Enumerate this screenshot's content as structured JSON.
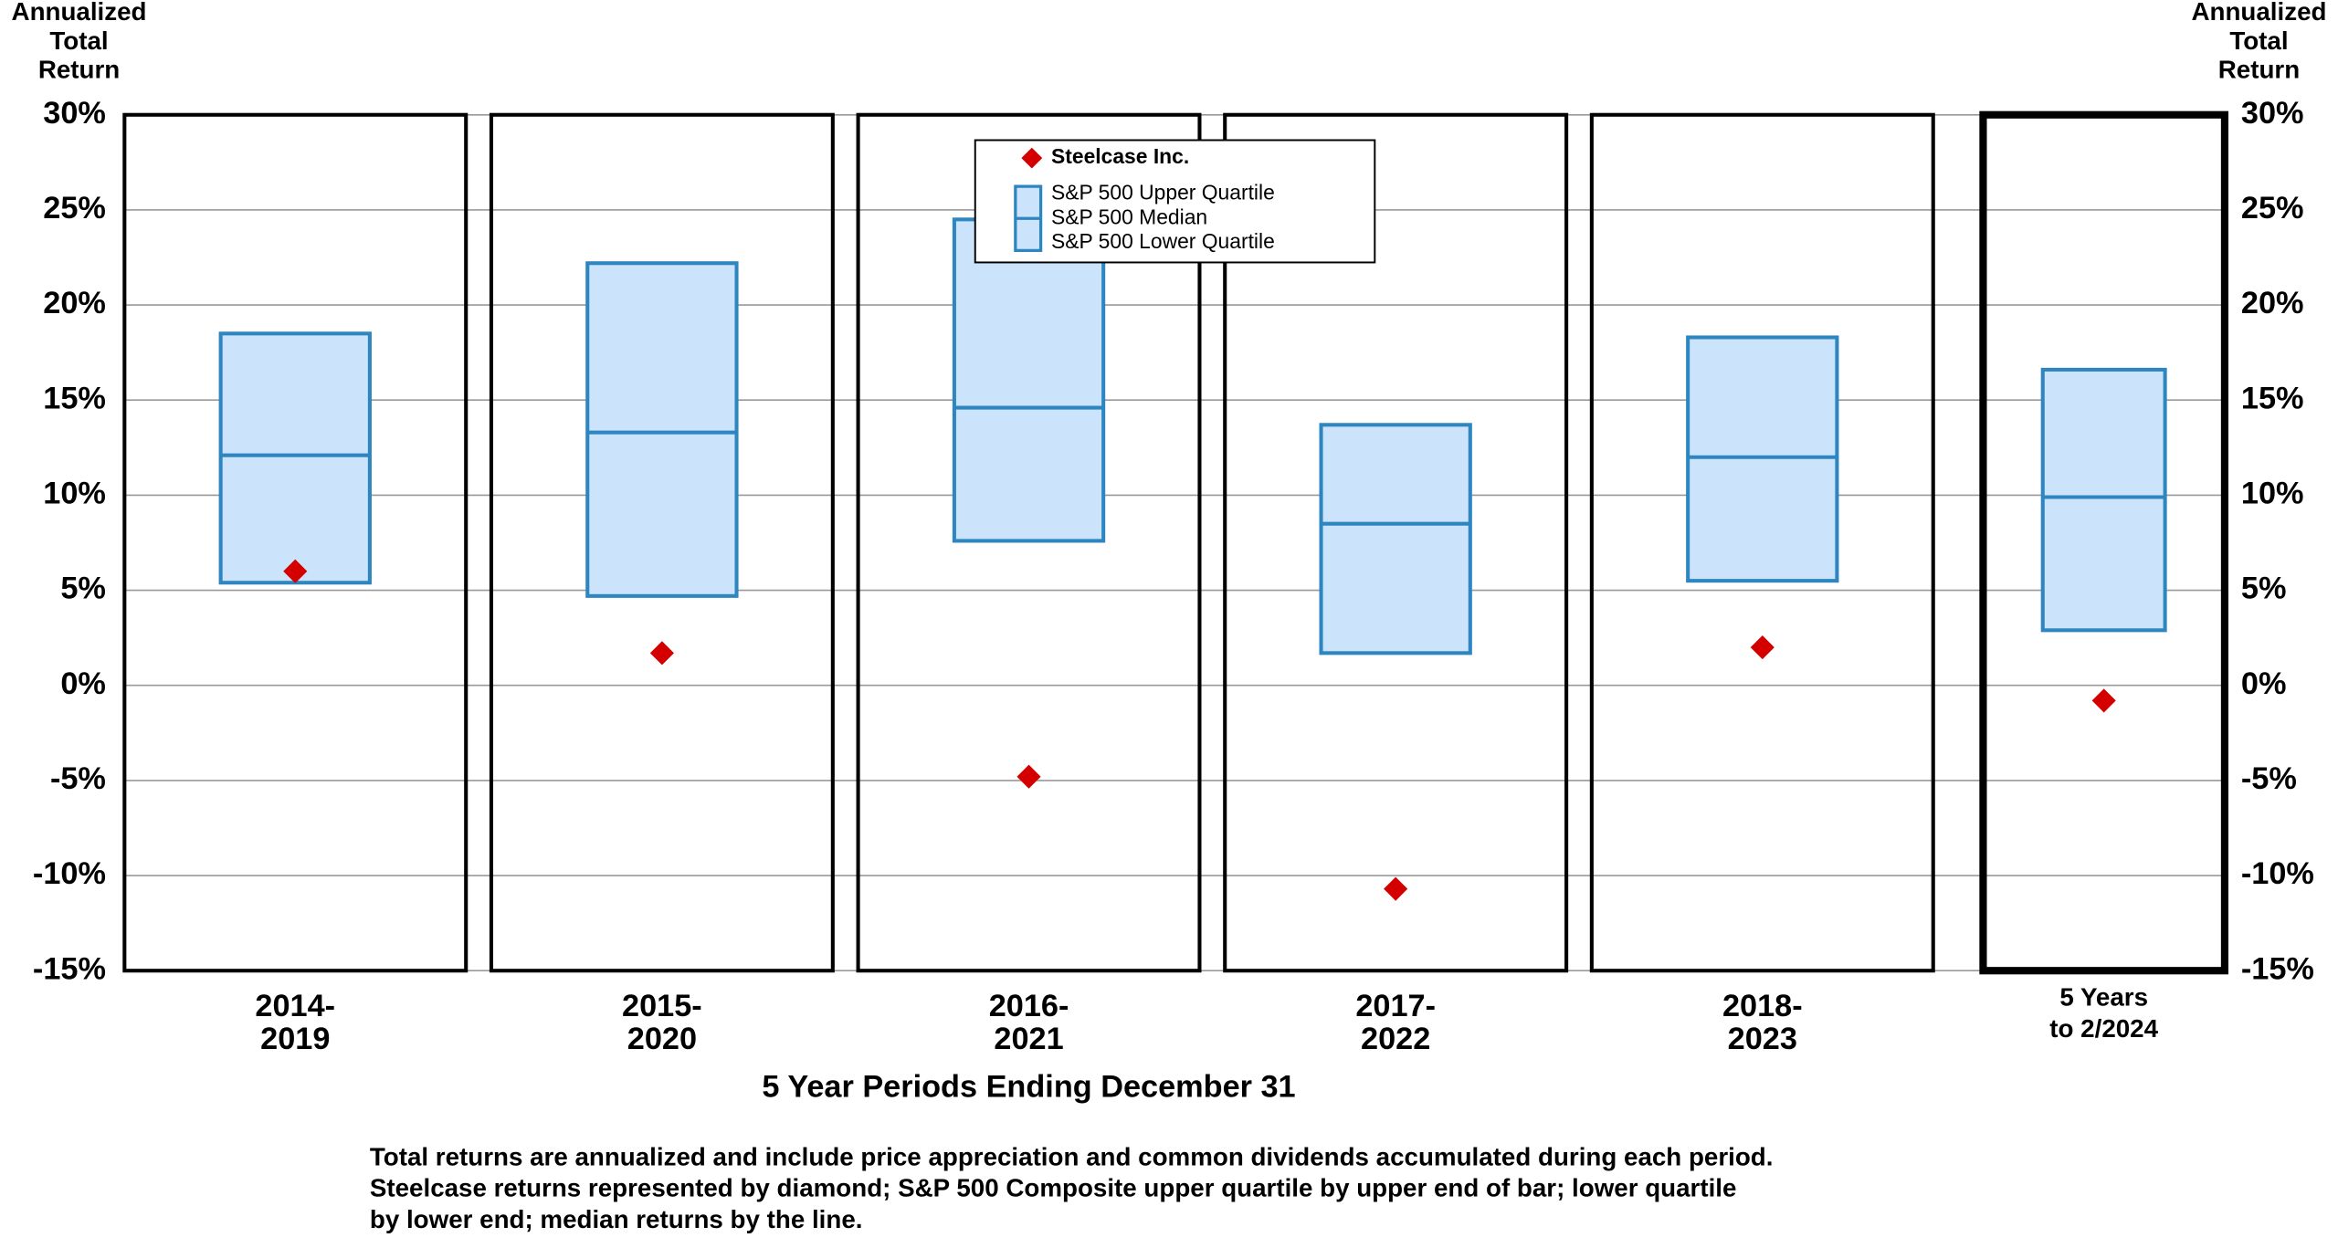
{
  "chart_data": {
    "type": "range",
    "y_label": [
      "Annualized",
      "Total",
      "Return"
    ],
    "y2_label": [
      "Annualized",
      "Total",
      "Return"
    ],
    "x_label": "5 Year Periods Ending December 31",
    "categories": [
      [
        "2014-",
        "2019"
      ],
      [
        "2015-",
        "2020"
      ],
      [
        "2016-",
        "2021"
      ],
      [
        "2017-",
        "2022"
      ],
      [
        "2018-",
        "2023"
      ],
      [
        "5 Years",
        "to  2/2024"
      ]
    ],
    "series": [
      {
        "name": "S&P 500 Upper Quartile",
        "color": "#2e86c1",
        "values": [
          18.5,
          22.2,
          24.5,
          13.7,
          18.3,
          16.6
        ]
      },
      {
        "name": "S&P 500 Median",
        "color": "#2e86c1",
        "values": [
          12.1,
          13.3,
          14.6,
          8.5,
          12.0,
          9.9
        ]
      },
      {
        "name": "S&P 500 Lower Quartile",
        "color": "#2e86c1",
        "values": [
          5.4,
          4.7,
          7.6,
          1.7,
          5.5,
          2.9
        ]
      },
      {
        "name": "Steelcase Inc.",
        "color": "#d40000",
        "values": [
          6.0,
          1.7,
          -4.8,
          -10.7,
          2.0,
          -0.8
        ]
      }
    ],
    "box_fill": "#cce4fb",
    "ylim": [
      -15,
      30
    ],
    "yticks": [
      {
        "value": -15,
        "label": "-15%"
      },
      {
        "value": -10,
        "label": "-10%"
      },
      {
        "value": -5,
        "label": "-5%"
      },
      {
        "value": 0,
        "label": "0%"
      },
      {
        "value": 5,
        "label": "5%"
      },
      {
        "value": 10,
        "label": "10%"
      },
      {
        "value": 15,
        "label": "15%"
      },
      {
        "value": 20,
        "label": "20%"
      },
      {
        "value": 25,
        "label": "25%"
      },
      {
        "value": 30,
        "label": "30%"
      }
    ],
    "grid": true,
    "legend": "top",
    "footnote": [
      "Total returns are annualized and include price appreciation and common dividends accumulated during each period.",
      "Steelcase returns represented by diamond; S&P 500 Composite upper quartile by upper end of bar; lower quartile",
      "by lower end; median returns by the line."
    ]
  }
}
